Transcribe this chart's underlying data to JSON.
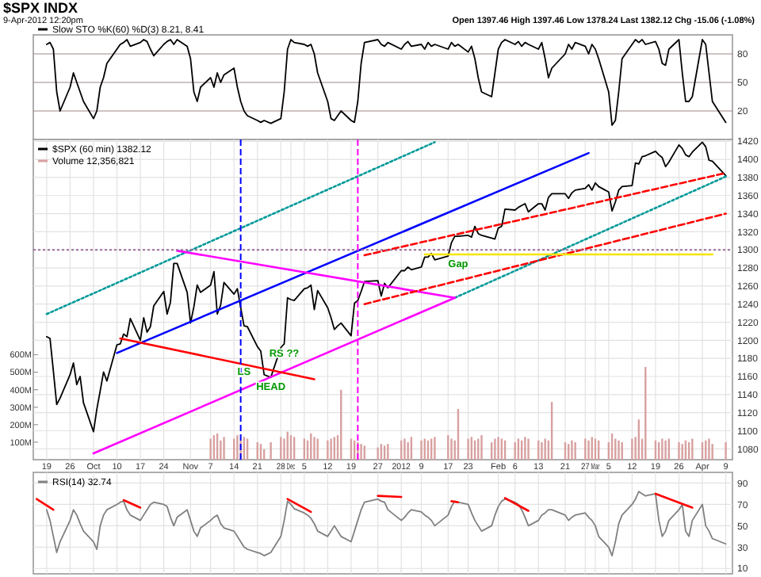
{
  "chart_data": [
    {
      "type": "line",
      "title": "$SPX INDX",
      "subtitle": "9-Apr-2012 12:20pm",
      "annotations": [
        "Open 1397.46 High 1397.46 Low 1378.24 Last 1382.12 Chg -15.06 (-1.08%)"
      ],
      "x": [
        "2011-09-19",
        "2011-09-20",
        "2011-09-21",
        "2011-09-22",
        "2011-09-23",
        "2011-09-26",
        "2011-09-27",
        "2011-09-28",
        "2011-09-29",
        "2011-09-30",
        "2011-10-03",
        "2011-10-04",
        "2011-10-05",
        "2011-10-06",
        "2011-10-07",
        "2011-10-10",
        "2011-10-11",
        "2011-10-12",
        "2011-10-13",
        "2011-10-14",
        "2011-10-17",
        "2011-10-18",
        "2011-10-19",
        "2011-10-20",
        "2011-10-21",
        "2011-10-24",
        "2011-10-25",
        "2011-10-26",
        "2011-10-27",
        "2011-10-28",
        "2011-10-31",
        "2011-11-01",
        "2011-11-02",
        "2011-11-03",
        "2011-11-04",
        "2011-11-07",
        "2011-11-08",
        "2011-11-09",
        "2011-11-10",
        "2011-11-11",
        "2011-11-14",
        "2011-11-15",
        "2011-11-16",
        "2011-11-17",
        "2011-11-18",
        "2011-11-21",
        "2011-11-22",
        "2011-11-23",
        "2011-11-25",
        "2011-11-28",
        "2011-11-29",
        "2011-11-30",
        "2011-12-01",
        "2011-12-02",
        "2011-12-05",
        "2011-12-06",
        "2011-12-07",
        "2011-12-08",
        "2011-12-09",
        "2011-12-12",
        "2011-12-13",
        "2011-12-14",
        "2011-12-15",
        "2011-12-16",
        "2011-12-19",
        "2011-12-20",
        "2011-12-21",
        "2011-12-22",
        "2011-12-23",
        "2011-12-27",
        "2011-12-28",
        "2011-12-29",
        "2011-12-30",
        "2012-01-03",
        "2012-01-04",
        "2012-01-05",
        "2012-01-06",
        "2012-01-09",
        "2012-01-10",
        "2012-01-11",
        "2012-01-12",
        "2012-01-13",
        "2012-01-17",
        "2012-01-18",
        "2012-01-19",
        "2012-01-20",
        "2012-01-23",
        "2012-01-24",
        "2012-01-25",
        "2012-01-26",
        "2012-01-27",
        "2012-01-30",
        "2012-01-31",
        "2012-02-01",
        "2012-02-02",
        "2012-02-03",
        "2012-02-06",
        "2012-02-07",
        "2012-02-08",
        "2012-02-09",
        "2012-02-10",
        "2012-02-13",
        "2012-02-14",
        "2012-02-15",
        "2012-02-16",
        "2012-02-17",
        "2012-02-21",
        "2012-02-22",
        "2012-02-23",
        "2012-02-24",
        "2012-02-27",
        "2012-02-28",
        "2012-02-29",
        "2012-03-01",
        "2012-03-02",
        "2012-03-05",
        "2012-03-06",
        "2012-03-07",
        "2012-03-08",
        "2012-03-09",
        "2012-03-12",
        "2012-03-13",
        "2012-03-14",
        "2012-03-15",
        "2012-03-16",
        "2012-03-19",
        "2012-03-20",
        "2012-03-21",
        "2012-03-22",
        "2012-03-23",
        "2012-03-26",
        "2012-03-27",
        "2012-03-28",
        "2012-03-29",
        "2012-03-30",
        "2012-04-02",
        "2012-04-03",
        "2012-04-04",
        "2012-04-05",
        "2012-04-09"
      ],
      "series": [
        {
          "name": "Slow STO %K(60) %D(3) 8.21, 8.41",
          "color": "#000000",
          "values": [
            90,
            92,
            85,
            40,
            20,
            45,
            60,
            50,
            40,
            30,
            12,
            20,
            45,
            55,
            70,
            85,
            90,
            92,
            95,
            88,
            92,
            95,
            93,
            85,
            78,
            90,
            93,
            95,
            90,
            95,
            88,
            75,
            40,
            30,
            45,
            55,
            45,
            60,
            50,
            58,
            65,
            45,
            30,
            20,
            15,
            10,
            8,
            10,
            7,
            12,
            40,
            85,
            95,
            92,
            90,
            88,
            90,
            80,
            60,
            30,
            12,
            10,
            15,
            20,
            10,
            8,
            30,
            70,
            92,
            95,
            90,
            88,
            92,
            85,
            90,
            93,
            88,
            90,
            85,
            92,
            88,
            90,
            85,
            92,
            88,
            90,
            82,
            88,
            75,
            55,
            40,
            35,
            60,
            85,
            92,
            95,
            90,
            93,
            88,
            92,
            90,
            85,
            92,
            75,
            55,
            65,
            80,
            90,
            85,
            92,
            88,
            80,
            90,
            85,
            75,
            40,
            5,
            10,
            40,
            75,
            90,
            95,
            92,
            95,
            90,
            93,
            85,
            70,
            68,
            85,
            95,
            60,
            30,
            30,
            35,
            95,
            90,
            60,
            30,
            8
          ]
        }
      ],
      "xlim": [
        "2011-09-15",
        "2012-04-11"
      ],
      "ylim": [
        -10,
        100
      ],
      "yticks": [
        20,
        50,
        80
      ],
      "grid": "y",
      "legend": "top left",
      "tick_labels": "y"
    },
    {
      "type": "line",
      "x": [
        "2011-09-19",
        "2011-09-20",
        "2011-09-21",
        "2011-09-22",
        "2011-09-23",
        "2011-09-26",
        "2011-09-27",
        "2011-09-28",
        "2011-09-29",
        "2011-09-30",
        "2011-10-03",
        "2011-10-04",
        "2011-10-05",
        "2011-10-06",
        "2011-10-07",
        "2011-10-10",
        "2011-10-11",
        "2011-10-12",
        "2011-10-13",
        "2011-10-14",
        "2011-10-17",
        "2011-10-18",
        "2011-10-19",
        "2011-10-20",
        "2011-10-21",
        "2011-10-24",
        "2011-10-25",
        "2011-10-26",
        "2011-10-27",
        "2011-10-28",
        "2011-10-31",
        "2011-11-01",
        "2011-11-02",
        "2011-11-03",
        "2011-11-04",
        "2011-11-07",
        "2011-11-08",
        "2011-11-09",
        "2011-11-10",
        "2011-11-11",
        "2011-11-14",
        "2011-11-15",
        "2011-11-16",
        "2011-11-17",
        "2011-11-18",
        "2011-11-21",
        "2011-11-22",
        "2011-11-23",
        "2011-11-25",
        "2011-11-28",
        "2011-11-29",
        "2011-11-30",
        "2011-12-01",
        "2011-12-02",
        "2011-12-05",
        "2011-12-06",
        "2011-12-07",
        "2011-12-08",
        "2011-12-09",
        "2011-12-12",
        "2011-12-13",
        "2011-12-14",
        "2011-12-15",
        "2011-12-16",
        "2011-12-19",
        "2011-12-20",
        "2011-12-21",
        "2011-12-22",
        "2011-12-23",
        "2011-12-27",
        "2011-12-28",
        "2011-12-29",
        "2011-12-30",
        "2012-01-03",
        "2012-01-04",
        "2012-01-05",
        "2012-01-06",
        "2012-01-09",
        "2012-01-10",
        "2012-01-11",
        "2012-01-12",
        "2012-01-13",
        "2012-01-17",
        "2012-01-18",
        "2012-01-19",
        "2012-01-20",
        "2012-01-23",
        "2012-01-24",
        "2012-01-25",
        "2012-01-26",
        "2012-01-27",
        "2012-01-30",
        "2012-01-31",
        "2012-02-01",
        "2012-02-02",
        "2012-02-03",
        "2012-02-06",
        "2012-02-07",
        "2012-02-08",
        "2012-02-09",
        "2012-02-10",
        "2012-02-13",
        "2012-02-14",
        "2012-02-15",
        "2012-02-16",
        "2012-02-17",
        "2012-02-21",
        "2012-02-22",
        "2012-02-23",
        "2012-02-24",
        "2012-02-27",
        "2012-02-28",
        "2012-02-29",
        "2012-03-01",
        "2012-03-02",
        "2012-03-05",
        "2012-03-06",
        "2012-03-07",
        "2012-03-08",
        "2012-03-09",
        "2012-03-12",
        "2012-03-13",
        "2012-03-14",
        "2012-03-15",
        "2012-03-16",
        "2012-03-19",
        "2012-03-20",
        "2012-03-21",
        "2012-03-22",
        "2012-03-23",
        "2012-03-26",
        "2012-03-27",
        "2012-03-28",
        "2012-03-29",
        "2012-03-30",
        "2012-04-02",
        "2012-04-03",
        "2012-04-04",
        "2012-04-05",
        "2012-04-09"
      ],
      "series": [
        {
          "name": "$SPX (60 min) 1382.12",
          "color": "#000000",
          "values": [
            1204,
            1202,
            1166,
            1129,
            1136,
            1162,
            1175,
            1151,
            1160,
            1131,
            1099,
            1124,
            1144,
            1165,
            1155,
            1195,
            1196,
            1207,
            1204,
            1224,
            1200,
            1225,
            1209,
            1215,
            1238,
            1254,
            1229,
            1242,
            1285,
            1285,
            1253,
            1219,
            1237,
            1261,
            1253,
            1261,
            1276,
            1229,
            1239,
            1264,
            1251,
            1257,
            1236,
            1216,
            1215,
            1193,
            1188,
            1162,
            1159,
            1192,
            1196,
            1247,
            1245,
            1244,
            1257,
            1258,
            1261,
            1234,
            1255,
            1236,
            1225,
            1212,
            1216,
            1219,
            1205,
            1241,
            1244,
            1254,
            1265,
            1266,
            1249,
            1263,
            1258,
            1277,
            1277,
            1281,
            1278,
            1281,
            1292,
            1292,
            1296,
            1289,
            1293,
            1308,
            1315,
            1315,
            1316,
            1314,
            1326,
            1318,
            1316,
            1313,
            1312,
            1324,
            1326,
            1345,
            1344,
            1347,
            1349,
            1351,
            1342,
            1351,
            1351,
            1344,
            1358,
            1362,
            1362,
            1357,
            1363,
            1366,
            1368,
            1372,
            1366,
            1374,
            1370,
            1364,
            1343,
            1353,
            1366,
            1370,
            1371,
            1396,
            1395,
            1403,
            1404,
            1409,
            1405,
            1402,
            1392,
            1397,
            1416,
            1412,
            1405,
            1403,
            1408,
            1419,
            1414,
            1399,
            1398,
            1382
          ]
        },
        {
          "name": "Volume 12,356,821",
          "type": "bar",
          "axis": "y2",
          "color": "#d8a0a0",
          "x": [
            "2011-11-07",
            "2011-11-08",
            "2011-11-09",
            "2011-11-10",
            "2011-11-11",
            "2011-11-14",
            "2011-11-15",
            "2011-11-16",
            "2011-11-17",
            "2011-11-18",
            "2011-11-21",
            "2011-11-22",
            "2011-11-23",
            "2011-11-25",
            "2011-11-28",
            "2011-11-29",
            "2011-11-30",
            "2011-12-01",
            "2011-12-02",
            "2011-12-05",
            "2011-12-06",
            "2011-12-07",
            "2011-12-08",
            "2011-12-09",
            "2011-12-12",
            "2011-12-13",
            "2011-12-14",
            "2011-12-15",
            "2011-12-16",
            "2011-12-19",
            "2011-12-20",
            "2011-12-21",
            "2011-12-22",
            "2011-12-23",
            "2011-12-27",
            "2011-12-28",
            "2011-12-29",
            "2011-12-30",
            "2012-01-03",
            "2012-01-04",
            "2012-01-05",
            "2012-01-06",
            "2012-01-09",
            "2012-01-10",
            "2012-01-11",
            "2012-01-12",
            "2012-01-13",
            "2012-01-17",
            "2012-01-18",
            "2012-01-19",
            "2012-01-20",
            "2012-01-23",
            "2012-01-24",
            "2012-01-25",
            "2012-01-26",
            "2012-01-27",
            "2012-01-30",
            "2012-01-31",
            "2012-02-01",
            "2012-02-02",
            "2012-02-03",
            "2012-02-06",
            "2012-02-07",
            "2012-02-08",
            "2012-02-09",
            "2012-02-10",
            "2012-02-13",
            "2012-02-14",
            "2012-02-15",
            "2012-02-16",
            "2012-02-17",
            "2012-02-21",
            "2012-02-22",
            "2012-02-23",
            "2012-02-24",
            "2012-02-27",
            "2012-02-28",
            "2012-02-29",
            "2012-03-01",
            "2012-03-02",
            "2012-03-05",
            "2012-03-06",
            "2012-03-07",
            "2012-03-08",
            "2012-03-09",
            "2012-03-12",
            "2012-03-13",
            "2012-03-14",
            "2012-03-15",
            "2012-03-16",
            "2012-03-19",
            "2012-03-20",
            "2012-03-21",
            "2012-03-22",
            "2012-03-23",
            "2012-03-26",
            "2012-03-27",
            "2012-03-28",
            "2012-03-29",
            "2012-03-30",
            "2012-04-02",
            "2012-04-03",
            "2012-04-04",
            "2012-04-05",
            "2012-04-09"
          ],
          "values": [
            120,
            140,
            150,
            110,
            130,
            120,
            140,
            110,
            130,
            120,
            100,
            90,
            60,
            100,
            130,
            120,
            160,
            140,
            130,
            120,
            110,
            150,
            130,
            120,
            110,
            120,
            130,
            140,
            400,
            120,
            110,
            100,
            90,
            80,
            70,
            90,
            80,
            90,
            110,
            120,
            100,
            130,
            110,
            120,
            110,
            120,
            130,
            140,
            120,
            110,
            290,
            120,
            130,
            110,
            120,
            140,
            100,
            120,
            130,
            120,
            110,
            100,
            120,
            110,
            130,
            120,
            110,
            100,
            120,
            110,
            330,
            100,
            90,
            110,
            100,
            120,
            110,
            130,
            120,
            110,
            100,
            150,
            120,
            110,
            100,
            120,
            130,
            230,
            120,
            530,
            110,
            100,
            120,
            110,
            120,
            100,
            90,
            110,
            100,
            120,
            100,
            110,
            120,
            90,
            100
          ]
        },
        {
          "x": [
            "2011-09-19",
            "2012-01-13"
          ],
          "values": [
            1229,
            1419
          ],
          "color": "#009999",
          "line_style": "dotted"
        },
        {
          "x": [
            "2012-01-19",
            "2012-04-09"
          ],
          "values": [
            1247,
            1381
          ],
          "color": "#009999",
          "line_style": "dotted"
        },
        {
          "x": [
            "2011-10-10",
            "2012-02-28"
          ],
          "values": [
            1186,
            1407
          ],
          "color": "#0000ff",
          "line_style": "solid"
        },
        {
          "x": [
            "2011-10-03",
            "2012-01-19"
          ],
          "values": [
            1075,
            1247
          ],
          "color": "#ff00ff",
          "line_style": "solid"
        },
        {
          "x": [
            "2011-10-28",
            "2012-01-19"
          ],
          "values": [
            1299,
            1247
          ],
          "color": "#ff00ff",
          "line_style": "solid"
        },
        {
          "x": [
            "2011-10-11",
            "2011-12-08"
          ],
          "values": [
            1202,
            1157
          ],
          "color": "#ff0000",
          "line_style": "solid"
        },
        {
          "x": [
            "2011-12-23",
            "2012-04-09"
          ],
          "values": [
            1294,
            1385
          ],
          "color": "#ff0000",
          "line_style": "dashed"
        },
        {
          "x": [
            "2011-12-23",
            "2012-04-09"
          ],
          "values": [
            1240,
            1340
          ],
          "color": "#ff0000",
          "line_style": "dashed"
        },
        {
          "x": [
            "2012-01-10",
            "2012-04-05"
          ],
          "values": [
            1295,
            1295
          ],
          "color": "#f5e400",
          "line_style": "solid"
        }
      ],
      "ref_lines": [
        {
          "axis": "y",
          "value": 1300,
          "color": "#9c6b9c",
          "line_style": "dotted"
        },
        {
          "axis": "x",
          "value": "2011-12-21",
          "color": "#ff00ff",
          "line_style": "dashed"
        },
        {
          "axis": "x",
          "value": "2011-11-16",
          "color": "#0000ff",
          "line_style": "dashed"
        }
      ],
      "annotations": [
        {
          "text": "LS",
          "x": "2011-11-17",
          "y": 1176
        },
        {
          "text": "RS ??",
          "x": "2011-11-29",
          "y": 1196
        },
        {
          "text": "HEAD",
          "x": "2011-11-25",
          "y": 1159
        },
        {
          "text": "Gap",
          "x": "2012-01-20",
          "y": 1295
        }
      ],
      "xlim": [
        "2011-09-15",
        "2012-04-11"
      ],
      "xticks": [
        {
          "value": "2011-09-19",
          "label": "19"
        },
        {
          "value": "2011-09-26",
          "label": "26"
        },
        {
          "value": "2011-10-03",
          "label": "Oct"
        },
        {
          "value": "2011-10-10",
          "label": "10"
        },
        {
          "value": "2011-10-17",
          "label": "17"
        },
        {
          "value": "2011-10-24",
          "label": "24"
        },
        {
          "value": "2011-11-01",
          "label": "Nov"
        },
        {
          "value": "2011-11-07",
          "label": "7"
        },
        {
          "value": "2011-11-14",
          "label": "14"
        },
        {
          "value": "2011-11-21",
          "label": "21"
        },
        {
          "value": "2011-11-28",
          "label": "28"
        },
        {
          "value": "2011-12-01",
          "label": "Dec"
        },
        {
          "value": "2011-12-05",
          "label": "5"
        },
        {
          "value": "2011-12-12",
          "label": "12"
        },
        {
          "value": "2011-12-19",
          "label": "19"
        },
        {
          "value": "2011-12-27",
          "label": "27"
        },
        {
          "value": "2012-01-03",
          "label": "2012"
        },
        {
          "value": "2012-01-09",
          "label": "9"
        },
        {
          "value": "2012-01-17",
          "label": "17"
        },
        {
          "value": "2012-01-23",
          "label": "23"
        },
        {
          "value": "2012-02-01",
          "label": "Feb"
        },
        {
          "value": "2012-02-06",
          "label": "6"
        },
        {
          "value": "2012-02-13",
          "label": "13"
        },
        {
          "value": "2012-02-21",
          "label": "21"
        },
        {
          "value": "2012-02-27",
          "label": "27"
        },
        {
          "value": "2012-03-01",
          "label": "Mar"
        },
        {
          "value": "2012-03-05",
          "label": "5"
        },
        {
          "value": "2012-03-12",
          "label": "12"
        },
        {
          "value": "2012-03-19",
          "label": "19"
        },
        {
          "value": "2012-03-26",
          "label": "26"
        },
        {
          "value": "2012-04-02",
          "label": "Apr"
        },
        {
          "value": "2012-04-09",
          "label": "9"
        }
      ],
      "ylim": [
        1068,
        1422
      ],
      "yticks": [
        1080,
        1100,
        1120,
        1140,
        1160,
        1180,
        1200,
        1220,
        1240,
        1260,
        1280,
        1300,
        1320,
        1340,
        1360,
        1380,
        1400,
        1420
      ],
      "y2lim": [
        0,
        1830
      ],
      "y2ticks": [
        {
          "value": 100,
          "label": "100M"
        },
        {
          "value": 200,
          "label": "200M"
        },
        {
          "value": 300,
          "label": "300M"
        },
        {
          "value": 400,
          "label": "400M"
        },
        {
          "value": 500,
          "label": "500M"
        },
        {
          "value": 600,
          "label": "600M"
        }
      ],
      "grid": true,
      "legend": "top left"
    },
    {
      "type": "line",
      "x": [
        "2011-09-19",
        "2011-09-20",
        "2011-09-21",
        "2011-09-22",
        "2011-09-23",
        "2011-09-26",
        "2011-09-27",
        "2011-09-28",
        "2011-09-29",
        "2011-09-30",
        "2011-10-03",
        "2011-10-04",
        "2011-10-05",
        "2011-10-06",
        "2011-10-07",
        "2011-10-10",
        "2011-10-11",
        "2011-10-12",
        "2011-10-13",
        "2011-10-14",
        "2011-10-17",
        "2011-10-18",
        "2011-10-19",
        "2011-10-20",
        "2011-10-21",
        "2011-10-24",
        "2011-10-25",
        "2011-10-26",
        "2011-10-27",
        "2011-10-28",
        "2011-10-31",
        "2011-11-01",
        "2011-11-02",
        "2011-11-03",
        "2011-11-04",
        "2011-11-07",
        "2011-11-08",
        "2011-11-09",
        "2011-11-10",
        "2011-11-11",
        "2011-11-14",
        "2011-11-15",
        "2011-11-16",
        "2011-11-17",
        "2011-11-18",
        "2011-11-21",
        "2011-11-22",
        "2011-11-23",
        "2011-11-25",
        "2011-11-28",
        "2011-11-29",
        "2011-11-30",
        "2011-12-01",
        "2011-12-02",
        "2011-12-05",
        "2011-12-06",
        "2011-12-07",
        "2011-12-08",
        "2011-12-09",
        "2011-12-12",
        "2011-12-13",
        "2011-12-14",
        "2011-12-15",
        "2011-12-16",
        "2011-12-19",
        "2011-12-20",
        "2011-12-21",
        "2011-12-22",
        "2011-12-23",
        "2011-12-27",
        "2011-12-28",
        "2011-12-29",
        "2011-12-30",
        "2012-01-03",
        "2012-01-04",
        "2012-01-05",
        "2012-01-06",
        "2012-01-09",
        "2012-01-10",
        "2012-01-11",
        "2012-01-12",
        "2012-01-13",
        "2012-01-17",
        "2012-01-18",
        "2012-01-19",
        "2012-01-20",
        "2012-01-23",
        "2012-01-24",
        "2012-01-25",
        "2012-01-26",
        "2012-01-27",
        "2012-01-30",
        "2012-01-31",
        "2012-02-01",
        "2012-02-02",
        "2012-02-03",
        "2012-02-06",
        "2012-02-07",
        "2012-02-08",
        "2012-02-09",
        "2012-02-10",
        "2012-02-13",
        "2012-02-14",
        "2012-02-15",
        "2012-02-16",
        "2012-02-17",
        "2012-02-21",
        "2012-02-22",
        "2012-02-23",
        "2012-02-24",
        "2012-02-27",
        "2012-02-28",
        "2012-02-29",
        "2012-03-01",
        "2012-03-02",
        "2012-03-05",
        "2012-03-06",
        "2012-03-07",
        "2012-03-08",
        "2012-03-09",
        "2012-03-12",
        "2012-03-13",
        "2012-03-14",
        "2012-03-15",
        "2012-03-16",
        "2012-03-19",
        "2012-03-20",
        "2012-03-21",
        "2012-03-22",
        "2012-03-23",
        "2012-03-26",
        "2012-03-27",
        "2012-03-28",
        "2012-03-29",
        "2012-03-30",
        "2012-04-02",
        "2012-04-03",
        "2012-04-04",
        "2012-04-05",
        "2012-04-09"
      ],
      "series": [
        {
          "name": "RSI(14) 32.74",
          "color": "#808080",
          "values": [
            65,
            55,
            40,
            25,
            35,
            55,
            65,
            60,
            52,
            45,
            35,
            28,
            50,
            60,
            65,
            70,
            72,
            73,
            65,
            60,
            55,
            60,
            65,
            70,
            72,
            70,
            68,
            58,
            50,
            58,
            65,
            55,
            45,
            40,
            48,
            55,
            58,
            60,
            52,
            48,
            45,
            40,
            35,
            30,
            28,
            25,
            24,
            22,
            25,
            40,
            55,
            73,
            70,
            66,
            62,
            60,
            57,
            52,
            45,
            40,
            45,
            50,
            45,
            40,
            35,
            45,
            55,
            65,
            72,
            75,
            73,
            72,
            65,
            55,
            58,
            62,
            65,
            63,
            60,
            58,
            55,
            50,
            60,
            68,
            73,
            72,
            70,
            62,
            55,
            50,
            45,
            50,
            60,
            68,
            73,
            75,
            72,
            70,
            65,
            58,
            50,
            55,
            60,
            62,
            65,
            65,
            60,
            55,
            58,
            60,
            62,
            58,
            55,
            50,
            40,
            30,
            22,
            35,
            52,
            60,
            70,
            75,
            82,
            80,
            78,
            80,
            55,
            40,
            45,
            55,
            65,
            70,
            45,
            40,
            55,
            70,
            50,
            45,
            38,
            33
          ]
        },
        {
          "x": [
            "2011-09-16",
            "2011-09-21"
          ],
          "values": [
            75,
            65
          ],
          "color": "#ff0000"
        },
        {
          "x": [
            "2011-10-12",
            "2011-10-17"
          ],
          "values": [
            74,
            67
          ],
          "color": "#ff0000"
        },
        {
          "x": [
            "2011-11-30",
            "2011-12-07"
          ],
          "values": [
            75,
            63
          ],
          "color": "#ff0000"
        },
        {
          "x": [
            "2011-12-27",
            "2012-01-03"
          ],
          "values": [
            78,
            77
          ],
          "color": "#ff0000"
        },
        {
          "x": [
            "2012-01-18",
            "2012-01-20"
          ],
          "values": [
            73,
            72
          ],
          "color": "#ff0000"
        },
        {
          "x": [
            "2012-02-03",
            "2012-02-10"
          ],
          "values": [
            76,
            64
          ],
          "color": "#ff0000"
        },
        {
          "x": [
            "2012-03-19",
            "2012-03-30"
          ],
          "values": [
            80,
            67
          ],
          "color": "#ff0000"
        }
      ],
      "xlim": [
        "2011-09-15",
        "2012-04-11"
      ],
      "xticks": [
        {
          "value": "2011-09-19",
          "label": null
        },
        {
          "value": "2011-09-26",
          "label": null
        },
        {
          "value": "2011-10-03",
          "label": null
        },
        {
          "value": "2011-10-10",
          "label": null
        },
        {
          "value": "2011-10-17",
          "label": null
        },
        {
          "value": "2011-10-24",
          "label": null
        },
        {
          "value": "2011-11-01",
          "label": null
        },
        {
          "value": "2011-11-07",
          "label": null
        },
        {
          "value": "2011-11-14",
          "label": null
        },
        {
          "value": "2011-11-21",
          "label": null
        },
        {
          "value": "2011-11-28",
          "label": null
        },
        {
          "value": "2011-12-01",
          "label": null
        },
        {
          "value": "2011-12-05",
          "label": null
        },
        {
          "value": "2011-12-12",
          "label": null
        },
        {
          "value": "2011-12-19",
          "label": null
        },
        {
          "value": "2011-12-27",
          "label": null
        },
        {
          "value": "2012-01-03",
          "label": null
        },
        {
          "value": "2012-01-09",
          "label": null
        },
        {
          "value": "2012-01-17",
          "label": null
        },
        {
          "value": "2012-01-23",
          "label": null
        },
        {
          "value": "2012-02-01",
          "label": null
        },
        {
          "value": "2012-02-06",
          "label": null
        },
        {
          "value": "2012-02-13",
          "label": null
        },
        {
          "value": "2012-02-21",
          "label": null
        },
        {
          "value": "2012-02-27",
          "label": null
        },
        {
          "value": "2012-03-01",
          "label": null
        },
        {
          "value": "2012-03-05",
          "label": null
        },
        {
          "value": "2012-03-12",
          "label": null
        },
        {
          "value": "2012-03-19",
          "label": null
        },
        {
          "value": "2012-03-26",
          "label": null
        },
        {
          "value": "2012-04-02",
          "label": null
        },
        {
          "value": "2012-04-09",
          "label": null
        }
      ],
      "ylim": [
        5,
        100
      ],
      "yticks": [
        10,
        30,
        50,
        70,
        90
      ],
      "grid": true,
      "legend": "top left",
      "tick_labels": "y"
    }
  ]
}
